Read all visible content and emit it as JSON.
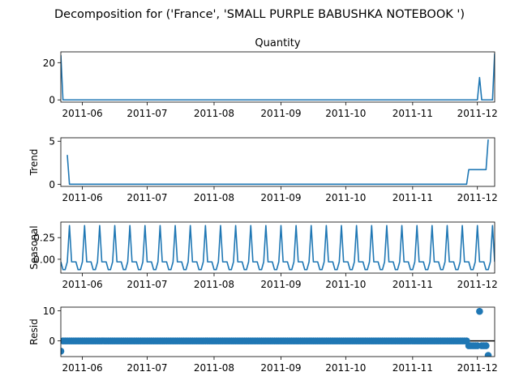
{
  "figure": {
    "suptitle": "Decomposition for ('France', 'SMALL PURPLE BABUSHKA NOTEBOOK ')"
  },
  "colors": {
    "series": "#1f77b4",
    "axis": "#000000",
    "background": "#ffffff"
  },
  "chart_data": [
    {
      "type": "line",
      "title": "Quantity",
      "ylabel": "",
      "yticks": [
        0,
        20
      ],
      "ylim": [
        -1.2,
        25.8
      ],
      "xlim": [
        "2011-05-22",
        "2011-12-09"
      ],
      "xticks": [
        "2011-06",
        "2011-07",
        "2011-08",
        "2011-09",
        "2011-10",
        "2011-11",
        "2011-12"
      ],
      "x_start": "2011-05-22",
      "step_days": 1,
      "points": [
        [
          0,
          24
        ],
        [
          1,
          0
        ],
        [
          193,
          0
        ],
        [
          194,
          12
        ],
        [
          195,
          0
        ],
        [
          200,
          0
        ],
        [
          201,
          25
        ]
      ]
    },
    {
      "type": "line",
      "title": "",
      "ylabel": "Trend",
      "yticks": [
        0,
        5
      ],
      "ylim": [
        -0.25,
        5.4
      ],
      "xlim": [
        "2011-05-22",
        "2011-12-09"
      ],
      "xticks": [
        "2011-06",
        "2011-07",
        "2011-08",
        "2011-09",
        "2011-10",
        "2011-11",
        "2011-12"
      ],
      "x_start": "2011-05-22",
      "step_days": 1,
      "points": [
        [
          3,
          3.4
        ],
        [
          4,
          0
        ],
        [
          188,
          0
        ],
        [
          189,
          1.7
        ],
        [
          197,
          1.7
        ],
        [
          198,
          5.2
        ]
      ]
    },
    {
      "type": "line",
      "title": "",
      "ylabel": "Seasonal",
      "yticks": [
        0.0,
        0.25
      ],
      "ytick_labels": [
        "0.00",
        "0.25"
      ],
      "ylim": [
        -0.16,
        0.43
      ],
      "xlim": [
        "2011-05-22",
        "2011-12-09"
      ],
      "xticks": [
        "2011-06",
        "2011-07",
        "2011-08",
        "2011-09",
        "2011-10",
        "2011-11",
        "2011-12"
      ],
      "x_start": "2011-05-22",
      "step_days": 1,
      "period": 7,
      "pattern": [
        -0.03,
        -0.12,
        -0.12,
        -0.03,
        0.39,
        -0.03,
        -0.03
      ]
    },
    {
      "type": "scatter",
      "title": "",
      "ylabel": "Resid",
      "yticks": [
        0,
        10
      ],
      "ylim": [
        -5.2,
        11.2
      ],
      "zero_line": true,
      "xlim": [
        "2011-05-22",
        "2011-12-09"
      ],
      "xticks": [
        "2011-06",
        "2011-07",
        "2011-08",
        "2011-09",
        "2011-10",
        "2011-11",
        "2011-12"
      ],
      "x_start": "2011-05-22",
      "step_days": 1,
      "base_value": 0,
      "base_range": [
        1,
        188
      ],
      "points": [
        [
          0,
          -3.4
        ],
        [
          189,
          -1.6
        ],
        [
          190,
          -1.6
        ],
        [
          191,
          -1.6
        ],
        [
          192,
          -1.6
        ],
        [
          193,
          -1.6
        ],
        [
          194,
          9.8
        ],
        [
          195,
          -1.6
        ],
        [
          196,
          -1.6
        ],
        [
          197,
          -1.6
        ],
        [
          198,
          -4.8
        ]
      ]
    }
  ]
}
